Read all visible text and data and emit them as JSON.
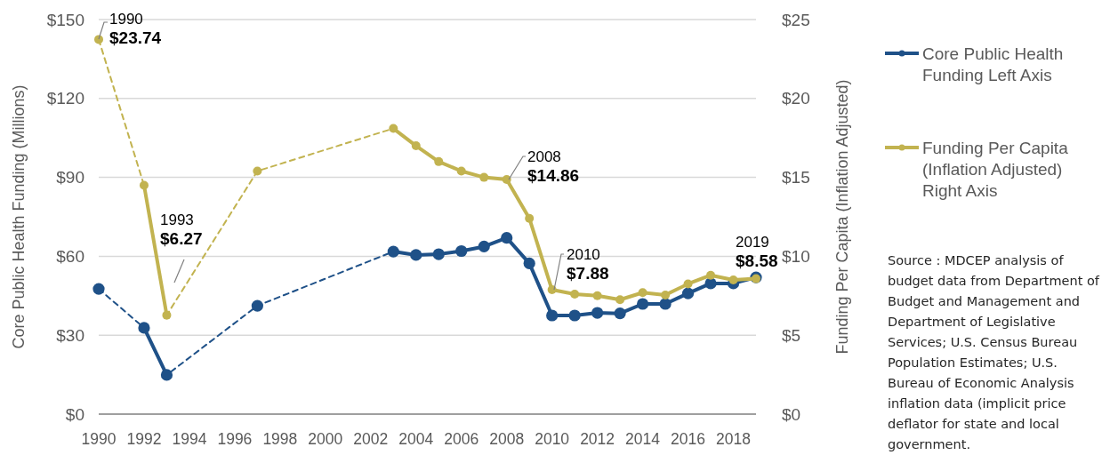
{
  "chart_data": {
    "type": "line",
    "xlabel": null,
    "ylabel": "Core Public Health Funding (Millions)",
    "y2label": "Funding Per Capita (Inflation Adjusted)",
    "xlim": [
      1990,
      2019
    ],
    "xticks": [
      1990,
      1992,
      1994,
      1996,
      1998,
      2000,
      2002,
      2004,
      2006,
      2008,
      2010,
      2012,
      2014,
      2016,
      2018
    ],
    "ylim": [
      0,
      150
    ],
    "yticks": [
      {
        "value": 0,
        "label": "$0"
      },
      {
        "value": 30,
        "label": "$30"
      },
      {
        "value": 60,
        "label": "$60"
      },
      {
        "value": 90,
        "label": "$90"
      },
      {
        "value": 120,
        "label": "$120"
      },
      {
        "value": 150,
        "label": "$150"
      }
    ],
    "y2lim": [
      0,
      25
    ],
    "y2ticks": [
      {
        "value": 0,
        "label": "$0"
      },
      {
        "value": 5,
        "label": "$5"
      },
      {
        "value": 10,
        "label": "$10"
      },
      {
        "value": 15,
        "label": "$15"
      },
      {
        "value": 20,
        "label": "$20"
      },
      {
        "value": 25,
        "label": "$25"
      }
    ],
    "grid": "y",
    "legend": "right",
    "series": [
      {
        "color": "#1f5188",
        "line_style": "dashed",
        "x": [
          1990,
          1992,
          1993,
          1997,
          2003
        ],
        "values": [
          47.6,
          32.8,
          14.9,
          41.2,
          61.8
        ]
      },
      {
        "name": "Core Public Health Funding Left Axis",
        "color": "#1f5188",
        "line_style": "solid",
        "marker": "circle",
        "x": [
          1990,
          1991,
          1992,
          1993,
          1994,
          1995,
          1996,
          1997,
          1998,
          1999,
          2000,
          2001,
          2002,
          2003,
          2004,
          2005,
          2006,
          2007,
          2008,
          2009,
          2010,
          2011,
          2012,
          2013,
          2014,
          2015,
          2016,
          2017,
          2018,
          2019
        ],
        "values": [
          47.6,
          null,
          32.8,
          14.9,
          null,
          null,
          null,
          41.2,
          null,
          null,
          null,
          null,
          null,
          61.8,
          60.5,
          60.8,
          62.0,
          63.7,
          67.0,
          57.3,
          37.5,
          37.5,
          38.5,
          38.3,
          41.9,
          41.9,
          45.9,
          49.7,
          49.7,
          52.0
        ]
      },
      {
        "color": "#c2b350",
        "line_style": "dashed",
        "axis": "y2",
        "x": [
          1990,
          1992,
          1993,
          1997,
          2003
        ],
        "values": [
          23.74,
          14.5,
          6.27,
          15.4,
          18.1
        ]
      },
      {
        "name": "Funding Per Capita (Inflation Adjusted) Right Axis",
        "color": "#c2b350",
        "line_style": "solid",
        "marker": "circle",
        "axis": "y2",
        "x": [
          1990,
          1991,
          1992,
          1993,
          1994,
          1995,
          1996,
          1997,
          1998,
          1999,
          2000,
          2001,
          2002,
          2003,
          2004,
          2005,
          2006,
          2007,
          2008,
          2009,
          2010,
          2011,
          2012,
          2013,
          2014,
          2015,
          2016,
          2017,
          2018,
          2019
        ],
        "values": [
          23.74,
          null,
          14.5,
          6.27,
          null,
          null,
          null,
          15.4,
          null,
          null,
          null,
          null,
          null,
          18.1,
          17.0,
          16.0,
          15.4,
          15.0,
          14.86,
          12.4,
          7.88,
          7.6,
          7.5,
          7.25,
          7.7,
          7.55,
          8.25,
          8.8,
          8.5,
          8.58
        ]
      }
    ],
    "annotations": [
      "1990\n$23.74",
      "1993\n$6.27",
      "2008\n$14.86",
      "2010\n$7.88",
      "2019\n$8.58",
      "Source : MDCEP analysis of budget data from Department of Budget and Management and Department of Legislative Services; U.S. Census Bureau Population Estimates; U.S. Bureau of Economic Analysis inflation data (implicit price deflator for state and local government."
    ]
  }
}
